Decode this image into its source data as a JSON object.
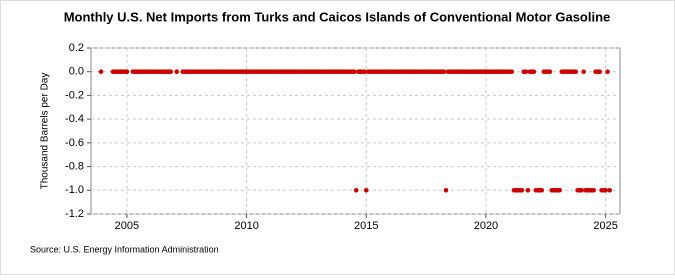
{
  "chart_data": {
    "type": "scatter",
    "title": "Monthly U.S. Net Imports from Turks and Caicos Islands of Conventional Motor Gasoline",
    "y_label": "Thousand Barrels per Day",
    "source": "Source: U.S. Energy Information Administration",
    "color": "#cc0000",
    "grid": true,
    "xlim": [
      2003.5,
      2025.6
    ],
    "xticks": [
      2005,
      2010,
      2015,
      2020,
      2025
    ],
    "ylim": [
      -1.2,
      0.2
    ],
    "yticks": [
      0.2,
      {
        "value": 0,
        "label": "0.0"
      },
      -0.2,
      -0.4,
      -0.6,
      -0.8,
      {
        "value": -1,
        "label": "-1.0"
      },
      -1.2
    ],
    "x": [
      2003.92,
      2004.42,
      2004.5,
      2004.58,
      2004.67,
      2004.75,
      2004.83,
      2004.92,
      2005,
      2005.25,
      2005.33,
      2005.42,
      2005.5,
      2005.58,
      2005.67,
      2005.75,
      2005.83,
      2005.92,
      2006,
      2006.08,
      2006.17,
      2006.25,
      2006.33,
      2006.42,
      2006.5,
      2006.58,
      2006.67,
      2006.75,
      2006.83,
      2007.08,
      2007.33,
      2007.42,
      2007.5,
      2007.58,
      2007.67,
      2007.75,
      2007.83,
      2007.92,
      2008,
      2008.08,
      2008.17,
      2008.25,
      2008.33,
      2008.42,
      2008.5,
      2008.58,
      2008.67,
      2008.75,
      2008.83,
      2008.92,
      2009,
      2009.08,
      2009.17,
      2009.25,
      2009.33,
      2009.42,
      2009.5,
      2009.58,
      2009.67,
      2009.75,
      2009.83,
      2009.92,
      2010,
      2010.08,
      2010.17,
      2010.25,
      2010.33,
      2010.42,
      2010.5,
      2010.58,
      2010.67,
      2010.75,
      2010.83,
      2010.92,
      2011,
      2011.08,
      2011.17,
      2011.25,
      2011.33,
      2011.42,
      2011.5,
      2011.58,
      2011.67,
      2011.75,
      2011.83,
      2011.92,
      2012,
      2012.08,
      2012.17,
      2012.25,
      2012.33,
      2012.42,
      2012.5,
      2012.58,
      2012.67,
      2012.75,
      2012.83,
      2012.92,
      2013,
      2013.08,
      2013.17,
      2013.25,
      2013.33,
      2013.42,
      2013.5,
      2013.58,
      2013.67,
      2013.75,
      2013.83,
      2013.92,
      2014,
      2014.08,
      2014.17,
      2014.25,
      2014.33,
      2014.42,
      2014.5,
      2014.58,
      2014.67,
      2014.75,
      2014.83,
      2014.92,
      2015,
      2015.08,
      2015.17,
      2015.25,
      2015.33,
      2015.42,
      2015.5,
      2015.58,
      2015.67,
      2015.75,
      2015.83,
      2015.92,
      2016,
      2016.08,
      2016.17,
      2016.25,
      2016.33,
      2016.42,
      2016.5,
      2016.58,
      2016.67,
      2016.75,
      2016.83,
      2016.92,
      2017,
      2017.08,
      2017.17,
      2017.25,
      2017.33,
      2017.42,
      2017.5,
      2017.58,
      2017.67,
      2017.75,
      2017.83,
      2017.92,
      2018,
      2018.08,
      2018.17,
      2018.25,
      2018.33,
      2018.42,
      2018.5,
      2018.58,
      2018.67,
      2018.75,
      2018.83,
      2018.92,
      2019,
      2019.08,
      2019.17,
      2019.25,
      2019.33,
      2019.42,
      2019.5,
      2019.58,
      2019.67,
      2019.75,
      2019.83,
      2019.92,
      2020,
      2020.08,
      2020.17,
      2020.25,
      2020.33,
      2020.42,
      2020.5,
      2020.58,
      2020.67,
      2020.75,
      2020.83,
      2020.92,
      2021,
      2021.08,
      2021.17,
      2021.25,
      2021.33,
      2021.42,
      2021.5,
      2021.58,
      2021.67,
      2021.75,
      2021.83,
      2021.92,
      2022,
      2022.08,
      2022.17,
      2022.25,
      2022.33,
      2022.42,
      2022.5,
      2022.58,
      2022.67,
      2022.75,
      2022.83,
      2022.92,
      2023,
      2023.08,
      2023.17,
      2023.25,
      2023.33,
      2023.42,
      2023.5,
      2023.58,
      2023.67,
      2023.75,
      2023.83,
      2023.92,
      2024,
      2024.08,
      2024.17,
      2024.25,
      2024.33,
      2024.42,
      2024.5,
      2024.58,
      2024.67,
      2024.75,
      2024.83,
      2024.92,
      2025,
      2025.08,
      2025.17
    ],
    "values": [
      0,
      0,
      0,
      0,
      0,
      0,
      0,
      0,
      0,
      0,
      0,
      0,
      0,
      0,
      0,
      0,
      0,
      0,
      0,
      0,
      0,
      0,
      0,
      0,
      0,
      0,
      0,
      0,
      0,
      0,
      0,
      0,
      0,
      0,
      0,
      0,
      0,
      0,
      0,
      0,
      0,
      0,
      0,
      0,
      0,
      0,
      0,
      0,
      0,
      0,
      0,
      0,
      0,
      0,
      0,
      0,
      0,
      0,
      0,
      0,
      0,
      0,
      0,
      0,
      0,
      0,
      0,
      0,
      0,
      0,
      0,
      0,
      0,
      0,
      0,
      0,
      0,
      0,
      0,
      0,
      0,
      0,
      0,
      0,
      0,
      0,
      0,
      0,
      0,
      0,
      0,
      0,
      0,
      0,
      0,
      0,
      0,
      0,
      0,
      0,
      0,
      0,
      0,
      0,
      0,
      0,
      0,
      0,
      0,
      0,
      0,
      0,
      0,
      0,
      0,
      0,
      0,
      -1,
      0,
      0,
      0,
      0,
      -1,
      0,
      0,
      0,
      0,
      0,
      0,
      0,
      0,
      0,
      0,
      0,
      0,
      0,
      0,
      0,
      0,
      0,
      0,
      0,
      0,
      0,
      0,
      0,
      0,
      0,
      0,
      0,
      0,
      0,
      0,
      0,
      0,
      0,
      0,
      0,
      0,
      0,
      0,
      0,
      -1,
      0,
      0,
      0,
      0,
      0,
      0,
      0,
      0,
      0,
      0,
      0,
      0,
      0,
      0,
      0,
      0,
      0,
      0,
      0,
      0,
      0,
      0,
      0,
      0,
      0,
      0,
      0,
      0,
      0,
      0,
      0,
      0,
      0,
      -1,
      -1,
      -1,
      -1,
      -1,
      0,
      0,
      -1,
      0,
      0,
      0,
      -1,
      -1,
      -1,
      -1,
      0,
      0,
      0,
      0,
      -1,
      -1,
      -1,
      -1,
      -1,
      0,
      0,
      0,
      0,
      0,
      0,
      0,
      0,
      -1,
      -1,
      -1,
      0,
      -1,
      -1,
      -1,
      -1,
      -1,
      0,
      0,
      0,
      -1,
      -1,
      -1,
      0,
      -1
    ]
  }
}
